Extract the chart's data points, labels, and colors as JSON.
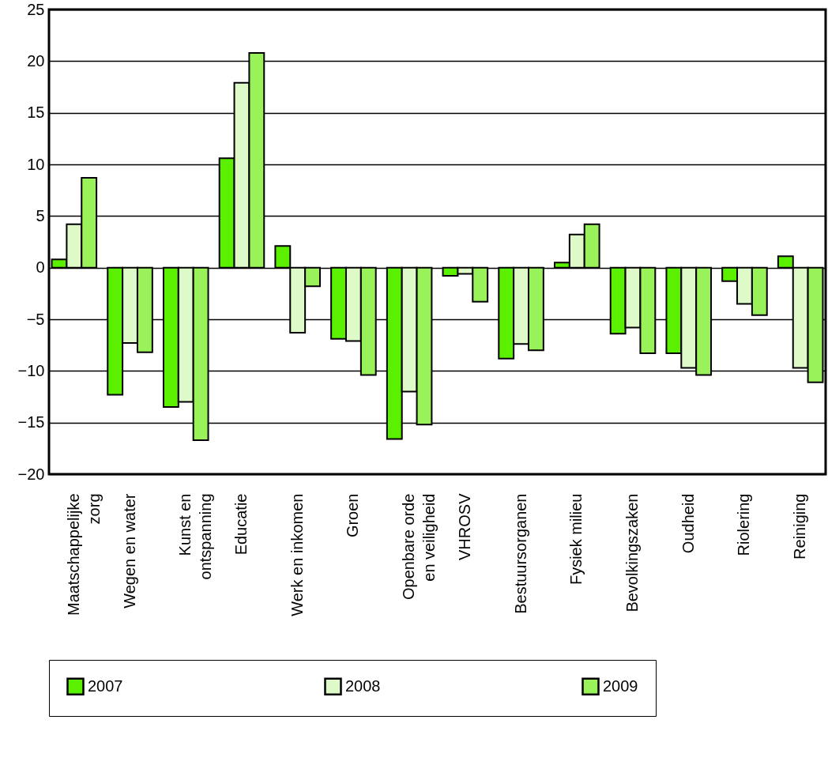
{
  "chart_data": {
    "type": "bar",
    "categories": [
      "Maatschappelijke zorg",
      "Wegen en water",
      "Kunst en ontspanning",
      "Educatie",
      "Werk en inkomen",
      "Groen",
      "Openbare orde en veiligheid",
      "VHROSV",
      "Bestuursorganen",
      "Fysiek milieu",
      "Bevolkingszaken",
      "Oudheid",
      "Riolering",
      "Reiniging"
    ],
    "series": [
      {
        "name": "2007",
        "color": "#5af000",
        "values": [
          0.8,
          -12.3,
          -13.5,
          10.6,
          2.1,
          -6.9,
          -16.6,
          -0.8,
          -8.8,
          0.5,
          -6.4,
          -8.3,
          -1.3,
          1.1
        ]
      },
      {
        "name": "2008",
        "color": "#ddfac8",
        "values": [
          4.2,
          -7.3,
          -13.0,
          17.9,
          -6.3,
          -7.1,
          -12.0,
          -0.6,
          -7.4,
          3.2,
          -5.8,
          -9.7,
          -3.5,
          -9.7
        ]
      },
      {
        "name": "2009",
        "color": "#99f25a",
        "values": [
          8.7,
          -8.2,
          -16.7,
          20.8,
          -1.8,
          -10.4,
          -15.2,
          -3.3,
          -8.0,
          4.2,
          -8.3,
          -10.4,
          -4.6,
          -11.1
        ]
      }
    ],
    "ylim": [
      -20,
      25
    ],
    "yticks": [
      -20,
      -15,
      -10,
      -5,
      0,
      5,
      10,
      15,
      20,
      25
    ],
    "grid": "y",
    "legend": "bottom"
  }
}
